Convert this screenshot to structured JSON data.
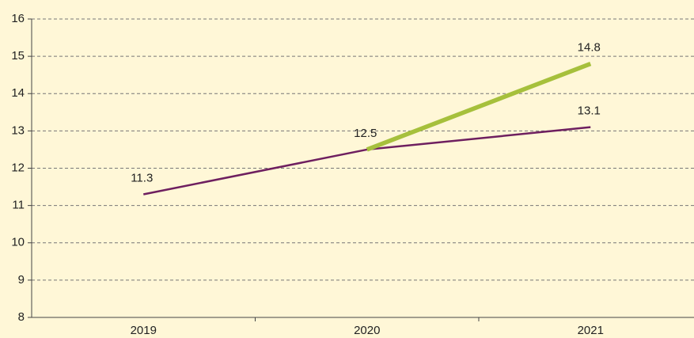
{
  "chart_data": {
    "type": "line",
    "categories": [
      "2019",
      "2020",
      "2021"
    ],
    "series": [
      {
        "color": "#6e1f5f",
        "values": [
          11.3,
          12.5,
          13.1
        ]
      },
      {
        "color": "#a6c03c",
        "values": [
          null,
          12.5,
          14.8
        ]
      }
    ],
    "ylim": [
      8,
      16
    ],
    "yticks": [
      8,
      9,
      10,
      11,
      12,
      13,
      14,
      15,
      16
    ],
    "grid": true
  }
}
